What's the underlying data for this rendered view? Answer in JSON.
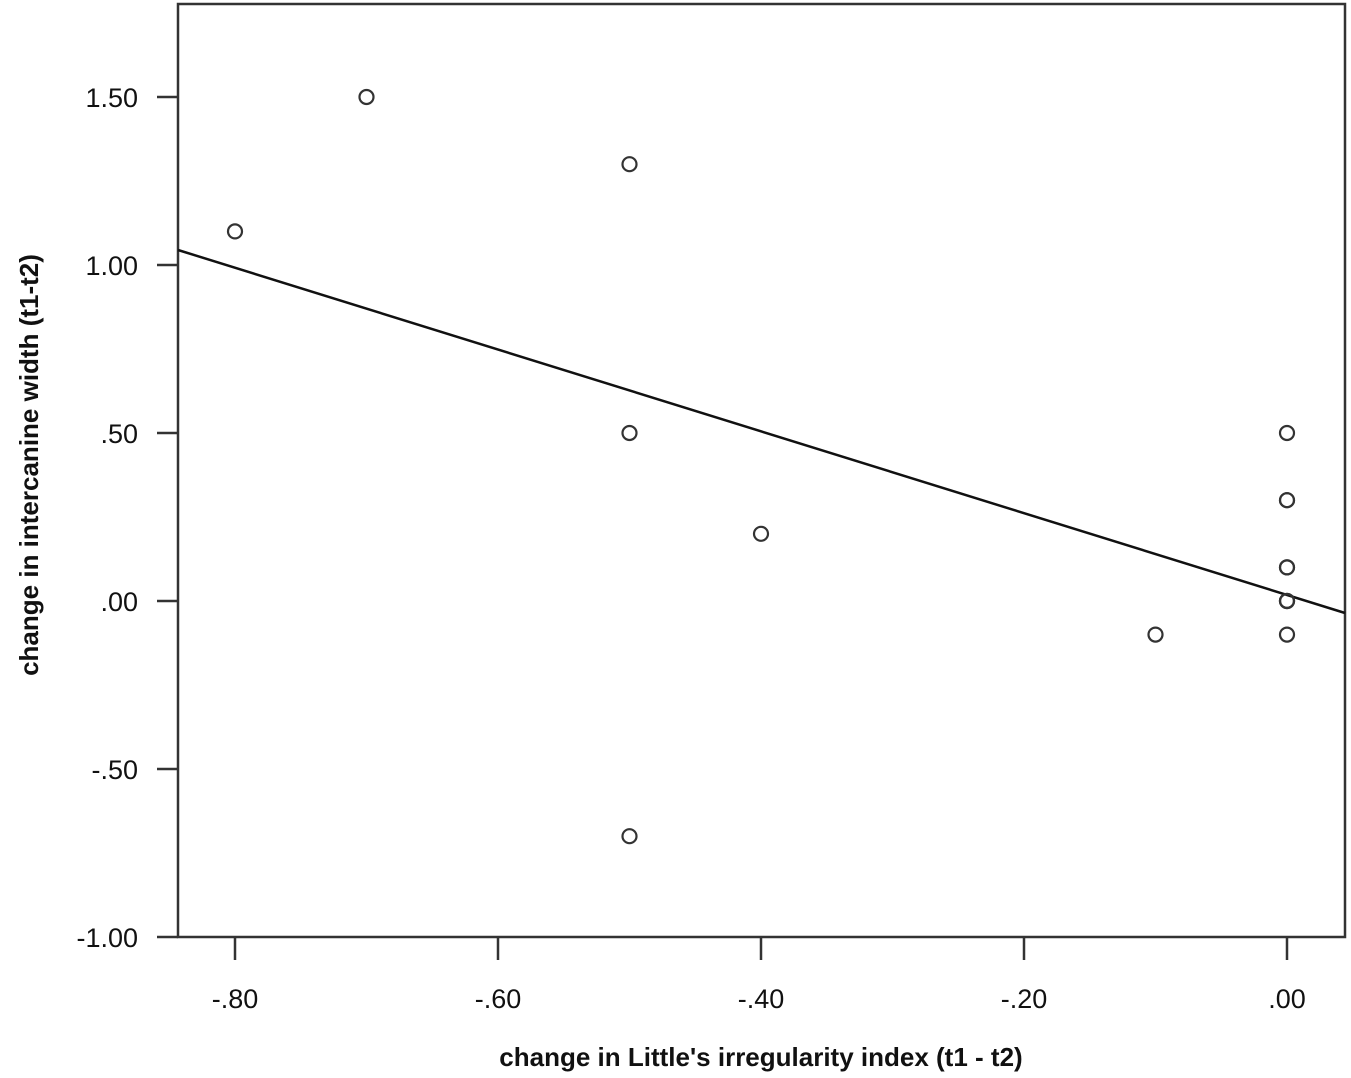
{
  "chart_data": {
    "type": "scatter",
    "title": "",
    "xlabel": "change in Little's irregularity index (t1 - t2)",
    "ylabel": "change in intercanine width (t1-t2)",
    "xlim": [
      -0.85,
      0.04
    ],
    "ylim": [
      -1.0,
      1.78
    ],
    "grid": false,
    "legend": null,
    "x_ticks": [
      -0.8,
      -0.6,
      -0.4,
      -0.2,
      0.0
    ],
    "x_tick_labels": [
      "-.80",
      "-.60",
      "-.40",
      "-.20",
      ".00"
    ],
    "y_ticks": [
      1.5,
      1.0,
      0.5,
      0.0,
      -0.5,
      -1.0
    ],
    "y_tick_labels": [
      "1.50",
      "1.00",
      ".50",
      ".00",
      "-.50",
      "-1.00"
    ],
    "series": [
      {
        "name": "observations",
        "marker": "open-circle",
        "points": [
          {
            "x": -0.8,
            "y": 1.1
          },
          {
            "x": -0.7,
            "y": 1.5
          },
          {
            "x": -0.5,
            "y": 1.3
          },
          {
            "x": -0.5,
            "y": 0.5
          },
          {
            "x": -0.5,
            "y": -0.7
          },
          {
            "x": -0.4,
            "y": 0.2
          },
          {
            "x": -0.1,
            "y": -0.1
          },
          {
            "x": 0.0,
            "y": 0.5
          },
          {
            "x": 0.0,
            "y": 0.3
          },
          {
            "x": 0.0,
            "y": 0.3
          },
          {
            "x": 0.0,
            "y": 0.1
          },
          {
            "x": 0.0,
            "y": 0.1
          },
          {
            "x": 0.0,
            "y": 0.0
          },
          {
            "x": 0.0,
            "y": 0.0
          },
          {
            "x": 0.0,
            "y": 0.0
          },
          {
            "x": 0.0,
            "y": -0.1
          }
        ]
      },
      {
        "name": "linear fit",
        "type": "line",
        "points": [
          {
            "x": -0.85,
            "y": 1.04
          },
          {
            "x": 0.04,
            "y": -0.04
          }
        ]
      }
    ]
  },
  "axes": {
    "x_title": "change in Little's irregularity index (t1 - t2)",
    "y_title": "change in intercanine width (t1-t2)"
  }
}
